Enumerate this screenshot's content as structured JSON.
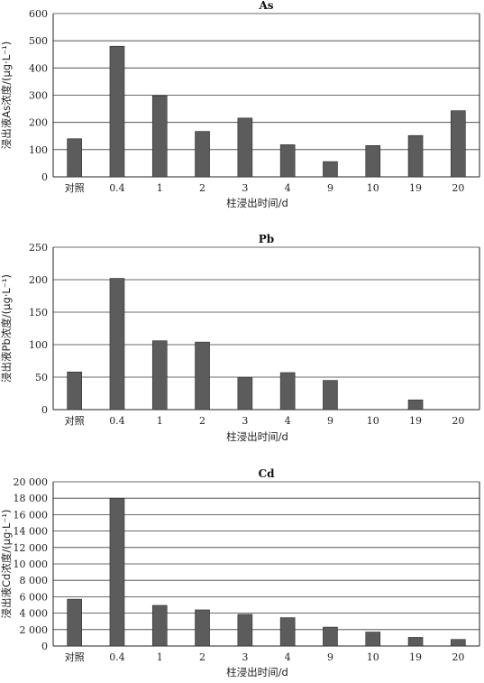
{
  "chart_data": [
    {
      "type": "bar",
      "title": "As",
      "xlabel": "柱浸出时间/d",
      "ylabel": "浸出液As浓度/(μg·L⁻¹)",
      "categories": [
        "对照",
        "0.4",
        "1",
        "2",
        "3",
        "4",
        "9",
        "10",
        "19",
        "20"
      ],
      "values": [
        140,
        480,
        298,
        167,
        216,
        118,
        56,
        115,
        152,
        243
      ],
      "ylim": [
        0,
        600
      ],
      "yticks": [
        0,
        100,
        200,
        300,
        400,
        500,
        600
      ],
      "ytick_labels": [
        "0",
        "100",
        "200",
        "300",
        "400",
        "500",
        "600"
      ],
      "grid": true,
      "bar_color": "#5c5c5c"
    },
    {
      "type": "bar",
      "title": "Pb",
      "xlabel": "柱浸出时间/d",
      "ylabel": "浸出液Pb浓度/(μg·L⁻¹)",
      "categories": [
        "对照",
        "0.4",
        "1",
        "2",
        "3",
        "4",
        "9",
        "10",
        "19",
        "20"
      ],
      "values": [
        58,
        202,
        106,
        104,
        49,
        57,
        45,
        0,
        15,
        0
      ],
      "ylim": [
        0,
        250
      ],
      "yticks": [
        0,
        50,
        100,
        150,
        200,
        250
      ],
      "ytick_labels": [
        "0",
        "50",
        "100",
        "150",
        "200",
        "250"
      ],
      "grid": true,
      "bar_color": "#5c5c5c"
    },
    {
      "type": "bar",
      "title": "Cd",
      "xlabel": "柱浸出时间/d",
      "ylabel": "浸出液Cd浓度/(μg·L⁻¹)",
      "categories": [
        "对照",
        "0.4",
        "1",
        "2",
        "3",
        "4",
        "9",
        "10",
        "19",
        "20"
      ],
      "values": [
        5700,
        18000,
        4950,
        4400,
        3850,
        3450,
        2300,
        1700,
        1050,
        800
      ],
      "ylim": [
        0,
        20000
      ],
      "yticks": [
        0,
        2000,
        4000,
        6000,
        8000,
        10000,
        12000,
        14000,
        16000,
        18000,
        20000
      ],
      "ytick_labels": [
        "0",
        "2 000",
        "4 000",
        "6 000",
        "8 000",
        "10 000",
        "12 000",
        "14 000",
        "16 000",
        "18 000",
        "20 000"
      ],
      "grid": true,
      "bar_color": "#5c5c5c"
    }
  ]
}
